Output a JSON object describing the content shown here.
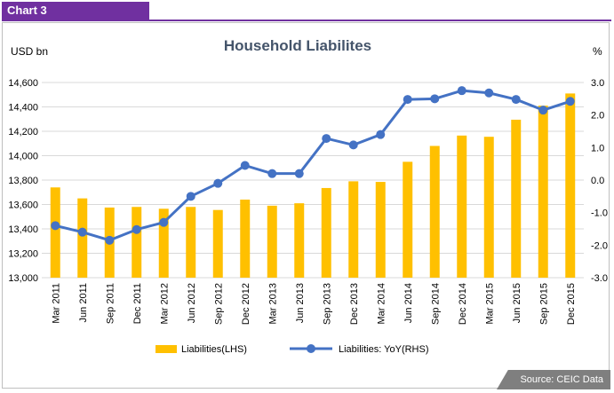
{
  "header": {
    "tab_label": "Chart 3"
  },
  "footer": {
    "source": "Source: CEIC Data"
  },
  "colors": {
    "tab": "#7030a0",
    "bar": "#ffc000",
    "line": "#4472c4",
    "title": "#44546a"
  },
  "chart_data": {
    "type": "bar",
    "title": "Household Liabilites",
    "ylabel_left": "USD bn",
    "ylabel_right": "%",
    "categories": [
      "Mar 2011",
      "Jun 2011",
      "Sep 2011",
      "Dec 2011",
      "Mar 2012",
      "Jun 2012",
      "Sep 2012",
      "Dec 2012",
      "Mar 2013",
      "Jun 2013",
      "Sep 2013",
      "Dec 2013",
      "Mar 2014",
      "Jun 2014",
      "Sep 2014",
      "Dec 2014",
      "Mar 2015",
      "Jun 2015",
      "Sep 2015",
      "Dec 2015"
    ],
    "ylim_left": [
      13000,
      14600
    ],
    "yticks_left": [
      "13,000",
      "13,200",
      "13,400",
      "13,600",
      "13,800",
      "14,000",
      "14,200",
      "14,400",
      "14,600"
    ],
    "ylim_right": [
      -3.0,
      3.0
    ],
    "yticks_right": [
      "-3.0",
      "-2.0",
      "-1.0",
      "0.0",
      "1.0",
      "2.0",
      "3.0"
    ],
    "series": [
      {
        "name": "Liabilities(LHS)",
        "type": "bar",
        "axis": "left",
        "values": [
          13740,
          13650,
          13575,
          13580,
          13565,
          13580,
          13555,
          13640,
          13590,
          13610,
          13735,
          13790,
          13785,
          13950,
          14080,
          14165,
          14155,
          14295,
          14410,
          14510
        ]
      },
      {
        "name": "Liabilities: YoY(RHS)",
        "type": "line",
        "axis": "right",
        "values": [
          -1.4,
          -1.6,
          -1.85,
          -1.52,
          -1.3,
          -0.5,
          -0.1,
          0.45,
          0.2,
          0.2,
          1.28,
          1.08,
          1.4,
          2.48,
          2.5,
          2.75,
          2.68,
          2.48,
          2.15,
          2.42
        ]
      }
    ],
    "legend_position": "bottom",
    "grid": true
  }
}
